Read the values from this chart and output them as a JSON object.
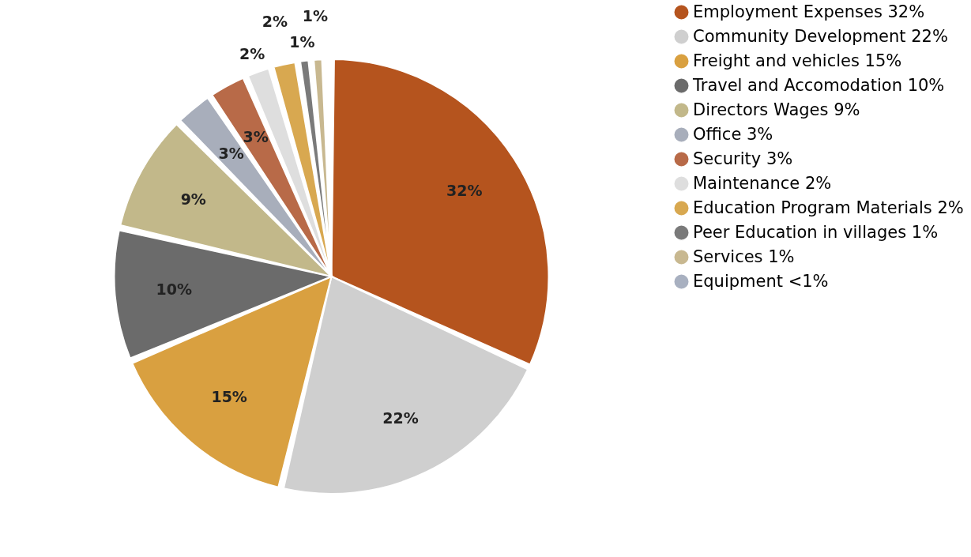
{
  "chart_data": {
    "type": "pie",
    "categories": [
      "Employment Expenses 32%",
      "Community Development 22%",
      "Freight and vehicles 15%",
      "Travel and Accomodation 10%",
      "Directors Wages 9%",
      "Office 3%",
      "Security 3%",
      "Maintenance 2%",
      "Education Program Materials 2%",
      "Peer Education in villages 1%",
      "Services 1%",
      "Equipment <1%"
    ],
    "values": [
      32,
      22,
      15,
      10,
      9,
      3,
      3,
      2,
      2,
      1,
      1,
      0.5
    ],
    "value_labels": [
      "32%",
      "22%",
      "15%",
      "10%",
      "9%",
      "3%",
      "3%",
      "2%",
      "2%",
      "1%",
      "1%",
      null
    ],
    "colors": [
      "#b5541e",
      "#cfcfcf",
      "#d9a040",
      "#6b6b6b",
      "#c2b88a",
      "#a8aebb",
      "#b86a48",
      "#dedede",
      "#d8a850",
      "#7a7a7a",
      "#c8b890",
      "#a8b0c0"
    ],
    "legend": "right"
  }
}
